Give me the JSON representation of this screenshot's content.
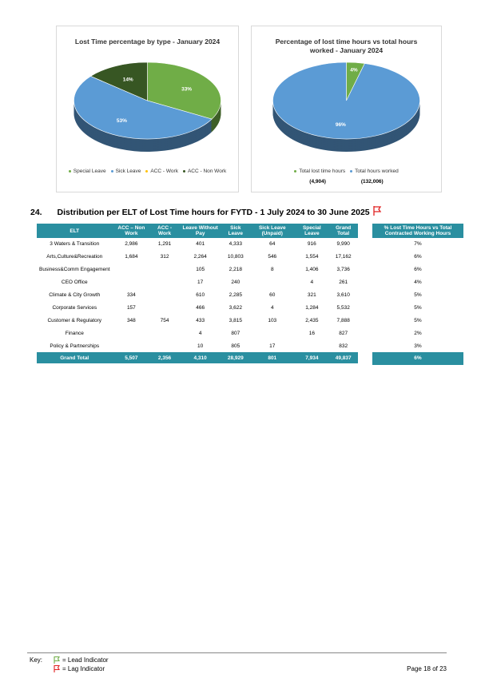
{
  "chart_data": [
    {
      "type": "pie",
      "title": "Lost Time percentage by type - January 2024",
      "categories": [
        "Special Leave",
        "Sick Leave",
        "ACC - Work",
        "ACC - Non Work"
      ],
      "values": [
        33,
        53,
        0,
        14
      ],
      "value_labels": [
        "33%",
        "53%",
        null,
        "14%"
      ],
      "colors": [
        "#70ad47",
        "#5b9bd5",
        "#ffc000",
        "#375623"
      ]
    },
    {
      "type": "pie",
      "title": "Percentage of lost time hours vs total hours worked - January 2024",
      "categories": [
        "Total lost time hours",
        "Total hours worked"
      ],
      "values": [
        4,
        96
      ],
      "value_labels": [
        "4%",
        "96%"
      ],
      "legend_notes": [
        "(4,904)",
        "(132,006)"
      ],
      "colors": [
        "#70ad47",
        "#5b9bd5"
      ]
    }
  ],
  "heading": {
    "number": "24.",
    "text": "Distribution per ELT of Lost Time hours for FYTD - 1 July 2024 to 30 June 2025"
  },
  "table": {
    "columns": [
      "ELT",
      "ACC – Non Work",
      "ACC - Work",
      "Leave Without Pay",
      "Sick Leave",
      "Sick Leave (Unpaid)",
      "Special Leave",
      "Grand Total"
    ],
    "rows": [
      [
        "3 Waters & Transition",
        "2,986",
        "1,291",
        "401",
        "4,333",
        "64",
        "916",
        "9,990"
      ],
      [
        "Arts,Culture&Recreation",
        "1,684",
        "312",
        "2,264",
        "10,803",
        "546",
        "1,554",
        "17,162"
      ],
      [
        "Business&Comm Engagement",
        null,
        null,
        "105",
        "2,218",
        "8",
        "1,406",
        "3,736"
      ],
      [
        "CEO Office",
        null,
        null,
        "17",
        "240",
        null,
        "4",
        "261"
      ],
      [
        "Climate & City Growth",
        "334",
        null,
        "610",
        "2,285",
        "60",
        "321",
        "3,610"
      ],
      [
        "Corporate Services",
        "157",
        null,
        "466",
        "3,622",
        "4",
        "1,284",
        "5,532"
      ],
      [
        "Customer & Regulatory",
        "348",
        "754",
        "433",
        "3,815",
        "103",
        "2,435",
        "7,888"
      ],
      [
        "Finance",
        null,
        null,
        "4",
        "807",
        null,
        "16",
        "827"
      ],
      [
        "Policy & Partnerships",
        null,
        null,
        "10",
        "805",
        "17",
        null,
        "832"
      ]
    ],
    "total": [
      "Grand Total",
      "5,507",
      "2,356",
      "4,310",
      "28,929",
      "801",
      "7,934",
      "49,837"
    ]
  },
  "side_table": {
    "header": "% Lost Time Hours vs Total Contracted Working Hours",
    "values": [
      "7%",
      "6%",
      "6%",
      "4%",
      "5%",
      "5%",
      "5%",
      "2%",
      "3%"
    ],
    "total": "6%"
  },
  "footer": {
    "key": "Key:",
    "lead": "= Lead Indicator",
    "lag": "= Lag Indicator",
    "page": "Page 18 of 23"
  }
}
